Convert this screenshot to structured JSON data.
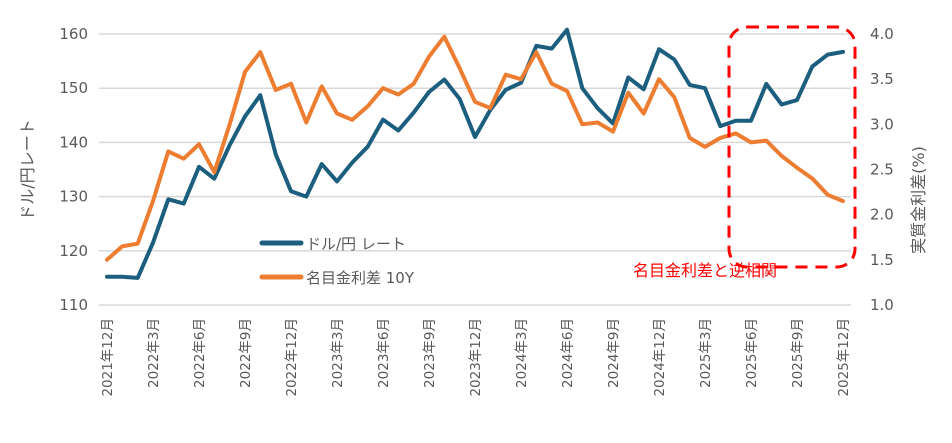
{
  "chart_data": {
    "type": "line",
    "title": "",
    "ylabel_left": "ドル/円レート",
    "ylabel_right": "実質金利差(%)",
    "ylim_left": [
      110,
      160
    ],
    "ylim_right": [
      1.0,
      4.0
    ],
    "yticks_left": [
      "110",
      "120",
      "130",
      "140",
      "150",
      "160"
    ],
    "yticks_left_values": [
      110,
      120,
      130,
      140,
      150,
      160
    ],
    "yticks_right": [
      "1.0",
      "1.5",
      "2.0",
      "2.5",
      "3.0",
      "3.5",
      "4.0"
    ],
    "yticks_right_values": [
      1.0,
      1.5,
      2.0,
      2.5,
      3.0,
      3.5,
      4.0
    ],
    "xtick_labels": [
      "2021年12月",
      "2022年3月",
      "2022年6月",
      "2022年9月",
      "2022年12月",
      "2023年3月",
      "2023年6月",
      "2023年9月",
      "2023年12月",
      "2024年3月",
      "2024年6月",
      "2024年9月",
      "2024年12月",
      "2025年3月",
      "2025年6月",
      "2025年9月",
      "2025年12月"
    ],
    "xtick_every_months": 3,
    "grid": true,
    "series": [
      {
        "name": "ドル/円 レート",
        "axis": "left",
        "color": "#1b5e7e",
        "values": [
          115.2,
          115.2,
          115.0,
          121.5,
          129.5,
          128.7,
          135.5,
          133.3,
          139.5,
          144.8,
          148.7,
          137.8,
          131.0,
          130.0,
          136.0,
          132.8,
          136.3,
          139.2,
          144.2,
          142.2,
          145.5,
          149.3,
          151.6,
          148.0,
          141.0,
          146.0,
          149.7,
          151.0,
          157.8,
          157.3,
          160.8,
          150.0,
          146.3,
          143.5,
          152.0,
          149.8,
          157.2,
          155.3,
          150.6,
          150.0,
          143.0,
          144.0,
          144.0,
          150.8,
          147.0,
          147.8,
          154.0,
          156.2,
          156.7
        ]
      },
      {
        "name": "名目金利差 10Y",
        "axis": "right",
        "color": "#ed7d31",
        "values": [
          1.5,
          1.65,
          1.68,
          2.15,
          2.7,
          2.62,
          2.78,
          2.47,
          3.0,
          3.58,
          3.8,
          3.38,
          3.45,
          3.02,
          3.42,
          3.12,
          3.05,
          3.2,
          3.4,
          3.33,
          3.45,
          3.75,
          3.97,
          3.62,
          3.25,
          3.18,
          3.55,
          3.5,
          3.8,
          3.45,
          3.37,
          3.0,
          3.02,
          2.92,
          3.35,
          3.12,
          3.5,
          3.3,
          2.85,
          2.75,
          2.85,
          2.9,
          2.8,
          2.82,
          2.65,
          2.52,
          2.4,
          2.22,
          2.15
        ]
      }
    ],
    "legend": {
      "position": "lower-center",
      "entries": [
        "ドル/円 レート",
        "名目金利差 10Y"
      ]
    },
    "annotation": {
      "text": "名目金利差と逆相関",
      "color": "#ff0000",
      "highlight_from_index": 40,
      "highlight_to_index": 48
    }
  }
}
